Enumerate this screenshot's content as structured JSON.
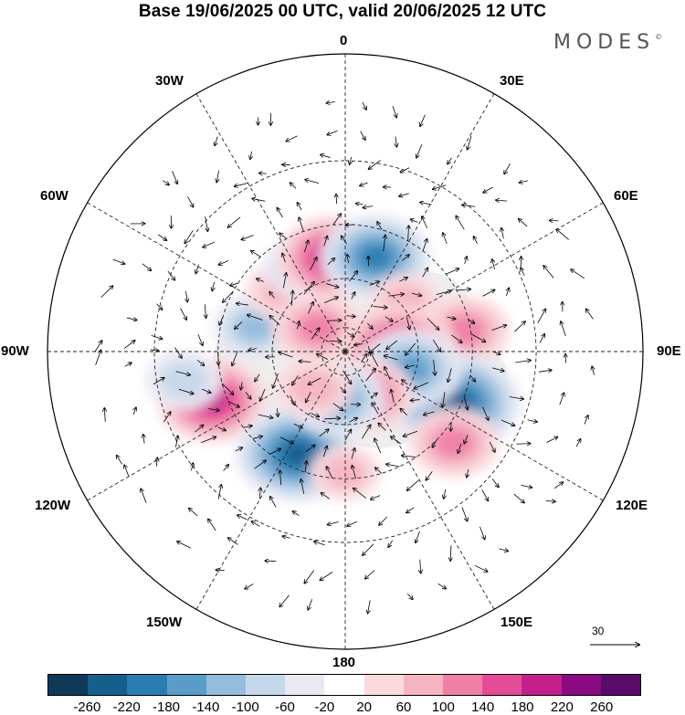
{
  "title": "Base 19/06/2025 00 UTC, valid 20/06/2025 12 UTC",
  "brand": "MODES",
  "brand_mark": "©",
  "longitude_labels": {
    "top": "0",
    "top_right": "30E",
    "right_upper": "60E",
    "right": "90E",
    "right_lower": "120E",
    "bottom_right": "150E",
    "bottom": "180",
    "bottom_left": "150W",
    "left_lower": "120W",
    "left": "90W",
    "left_upper": "60W",
    "top_left": "30W"
  },
  "vector_reference": "30",
  "colorbar": {
    "ticks": [
      "-260",
      "-220",
      "-180",
      "-140",
      "-100",
      "-60",
      "-20",
      "20",
      "60",
      "100",
      "140",
      "180",
      "220",
      "260"
    ],
    "colors": [
      "#0e3a57",
      "#155f8d",
      "#2a7db2",
      "#5a9cc8",
      "#94bcdc",
      "#c5d7ea",
      "#e8e9f3",
      "#ffffff",
      "#fadadd",
      "#f6b4c3",
      "#ee80a8",
      "#e44c98",
      "#c3208c",
      "#8a0a82",
      "#5a0a6a"
    ]
  },
  "projection": "polar-stereographic",
  "anomaly_centers": [
    {
      "id": "pos-pacific-west",
      "value": 200,
      "lon": -110,
      "lat": 35
    },
    {
      "id": "neg-pacific-ne",
      "value": -240,
      "lon": -155,
      "lat": 45
    },
    {
      "id": "neg-canada",
      "value": -120,
      "lon": -75,
      "lat": 52
    },
    {
      "id": "neg-atlantic-w",
      "value": -100,
      "lon": -100,
      "lat": 28
    },
    {
      "id": "pos-greenland",
      "value": 100,
      "lon": -45,
      "lat": 55
    },
    {
      "id": "pos-atlantic",
      "value": 140,
      "lon": -50,
      "lat": 75
    },
    {
      "id": "neg-atlantic-n",
      "value": -120,
      "lon": -25,
      "lat": 52
    },
    {
      "id": "pos-europe-w",
      "value": 200,
      "lon": -8,
      "lat": 52
    },
    {
      "id": "neg-europe-e",
      "value": -200,
      "lon": 18,
      "lat": 50
    },
    {
      "id": "pos-ural",
      "value": 80,
      "lon": 50,
      "lat": 58
    },
    {
      "id": "pos-siberia-w",
      "value": 140,
      "lon": 80,
      "lat": 42
    },
    {
      "id": "pos-siberia",
      "value": 220,
      "lon": 88,
      "lat": 68
    },
    {
      "id": "neg-siberia-e",
      "value": -260,
      "lon": 115,
      "lat": 42
    },
    {
      "id": "neg-arctic-east",
      "value": -180,
      "lon": 105,
      "lat": 62
    },
    {
      "id": "pos-east-siberia",
      "value": 160,
      "lon": 155,
      "lat": 70
    },
    {
      "id": "pos-japan",
      "value": 140,
      "lon": 130,
      "lat": 35
    },
    {
      "id": "neg-bering",
      "value": -160,
      "lon": -170,
      "lat": 70
    },
    {
      "id": "pos-alaska",
      "value": 100,
      "lon": -140,
      "lat": 70
    },
    {
      "id": "pos-pacific-n",
      "value": 80,
      "lon": -180,
      "lat": 42
    }
  ]
}
